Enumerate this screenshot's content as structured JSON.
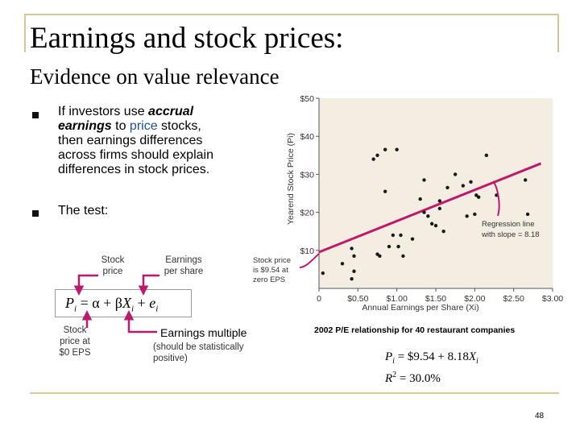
{
  "slide": {
    "title": "Earnings and stock prices:",
    "subtitle": "Evidence on value relevance",
    "bullet1": {
      "line1_pre": "If investors use ",
      "line1_em": "accrual",
      "line2_em": "earnings",
      "line2_mid": " to ",
      "line2_blue": "price",
      "line2_post": " stocks,",
      "line3": "then earnings differences",
      "line4": "across firms should explain",
      "line5": "differences in stock prices."
    },
    "bullet2": "The test:",
    "labels": {
      "stock_price_1": "Stock",
      "stock_price_2": "price",
      "eps_1": "Earnings",
      "eps_2": "per share",
      "intercept_1": "Stock",
      "intercept_2": "price at",
      "intercept_3": "$0 EPS",
      "multiple": "Earnings multiple",
      "note_1": "(should be statistically",
      "note_2": "positive)"
    },
    "formula": "Pi = α + βXi + ei",
    "caption": "2002 P/E relationship for 40 restaurant companies",
    "regression_equation": "Pi = $9.54 + 8.18Xi",
    "r_squared": "R² = 30.0%",
    "page_number": "48"
  },
  "colors": {
    "regression_line": "#c0186a",
    "frame": "#d4c79a",
    "chart_bg": "#f3ede2",
    "points": "#1a1a1a",
    "blue_text": "#1f4fa0"
  },
  "chart_data": {
    "type": "scatter",
    "xlabel": "Annual Earnings per Share (Xi)",
    "ylabel": "Yearend Stock Price (Pi)",
    "xlim": [
      0,
      3.0
    ],
    "ylim": [
      0,
      50
    ],
    "x_ticks": [
      "0",
      "$0.50",
      "$1.00",
      "$1.50",
      "$2.00",
      "$2.50",
      "$3.00"
    ],
    "y_ticks": [
      "$10",
      "$20",
      "$30",
      "$40",
      "$50"
    ],
    "x_tick_values": [
      0,
      0.5,
      1.0,
      1.5,
      2.0,
      2.5,
      3.0
    ],
    "y_tick_values": [
      10,
      20,
      30,
      40,
      50
    ],
    "grid": false,
    "points": [
      {
        "x": 0.05,
        "y": 4.0
      },
      {
        "x": 0.3,
        "y": 6.5
      },
      {
        "x": 0.45,
        "y": 4.5
      },
      {
        "x": 0.42,
        "y": 10.5
      },
      {
        "x": 0.45,
        "y": 8.5
      },
      {
        "x": 0.42,
        "y": 2.5
      },
      {
        "x": 0.78,
        "y": 8.5
      },
      {
        "x": 0.7,
        "y": 34.0
      },
      {
        "x": 0.75,
        "y": 35.0
      },
      {
        "x": 0.85,
        "y": 36.5
      },
      {
        "x": 1.0,
        "y": 36.5
      },
      {
        "x": 0.85,
        "y": 25.5
      },
      {
        "x": 0.9,
        "y": 11.0
      },
      {
        "x": 0.95,
        "y": 14.0
      },
      {
        "x": 1.02,
        "y": 11.0
      },
      {
        "x": 1.05,
        "y": 14.0
      },
      {
        "x": 1.08,
        "y": 8.5
      },
      {
        "x": 1.2,
        "y": 13.0
      },
      {
        "x": 1.35,
        "y": 28.5
      },
      {
        "x": 1.35,
        "y": 20.0
      },
      {
        "x": 1.3,
        "y": 23.5
      },
      {
        "x": 1.4,
        "y": 19.0
      },
      {
        "x": 1.45,
        "y": 17.0
      },
      {
        "x": 1.55,
        "y": 21.0
      },
      {
        "x": 1.55,
        "y": 23.0
      },
      {
        "x": 1.5,
        "y": 16.5
      },
      {
        "x": 1.65,
        "y": 26.5
      },
      {
        "x": 1.75,
        "y": 30.0
      },
      {
        "x": 1.85,
        "y": 27.0
      },
      {
        "x": 1.95,
        "y": 28.0
      },
      {
        "x": 2.02,
        "y": 24.5
      },
      {
        "x": 1.9,
        "y": 19.0
      },
      {
        "x": 2.05,
        "y": 24.0
      },
      {
        "x": 2.15,
        "y": 35.0
      },
      {
        "x": 2.28,
        "y": 24.5
      },
      {
        "x": 2.65,
        "y": 28.5
      },
      {
        "x": 2.68,
        "y": 19.5
      },
      {
        "x": 0.75,
        "y": 9.0
      },
      {
        "x": 1.6,
        "y": 15.0
      },
      {
        "x": 2.0,
        "y": 19.5
      }
    ],
    "regression": {
      "intercept": 9.54,
      "slope": 8.18
    },
    "annotations": [
      {
        "text_lines": [
          "Regression line",
          "with slope = 8.18"
        ]
      },
      {
        "text_lines": [
          "Stock price",
          "is $9.54 at",
          "zero EPS"
        ]
      }
    ]
  }
}
